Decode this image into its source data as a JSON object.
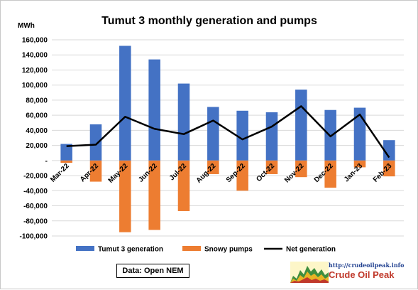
{
  "chart_data": {
    "type": "bar",
    "title": "Tumut 3 monthly generation and pumps",
    "ylabel": "MWh",
    "xlabel": "",
    "ylim": [
      -100000,
      160000
    ],
    "yticks": [
      160000,
      140000,
      120000,
      100000,
      80000,
      60000,
      40000,
      20000,
      0,
      -20000,
      -40000,
      -60000,
      -80000,
      -100000
    ],
    "ytick_labels": [
      "160,000",
      "140,000",
      "120,000",
      "100,000",
      "80,000",
      "60,000",
      "40,000",
      "20,000",
      "-",
      "-20,000",
      "-40,000",
      "-60,000",
      "-80,000",
      "-100,000"
    ],
    "categories": [
      "Mar-22",
      "Apr-22",
      "May-22",
      "Jun-22",
      "Jul-22",
      "Aug-22",
      "Sep-22",
      "Oct-22",
      "Nov-22",
      "Dec-22",
      "Jan-23",
      "Feb-23"
    ],
    "series": [
      {
        "name": "Tumut 3 generation",
        "type": "bar",
        "color": "#4472c4",
        "values": [
          22000,
          48000,
          152000,
          134000,
          102000,
          71000,
          66000,
          64000,
          94000,
          67000,
          70000,
          27000
        ]
      },
      {
        "name": "Snowy pumps",
        "type": "bar",
        "color": "#ed7d31",
        "values": [
          -3000,
          -28000,
          -95000,
          -92000,
          -67000,
          -18000,
          -40000,
          -18000,
          -22000,
          -36000,
          -9000,
          -21000
        ]
      },
      {
        "name": "Net generation",
        "type": "line",
        "color": "#000000",
        "values": [
          19000,
          21000,
          58000,
          42000,
          35000,
          53000,
          28000,
          45000,
          72000,
          32000,
          61000,
          4000
        ]
      }
    ],
    "grid": true,
    "legend_position": "bottom"
  },
  "source_note": "Data:  Open NEM",
  "watermark": {
    "url": "http://crudeoilpeak.info",
    "brand": "Crude Oil Peak"
  }
}
